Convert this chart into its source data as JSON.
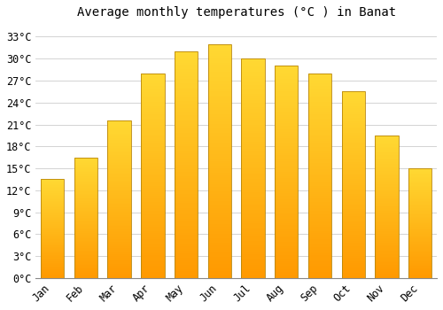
{
  "title": "Average monthly temperatures (°C ) in Banat",
  "months": [
    "Jan",
    "Feb",
    "Mar",
    "Apr",
    "May",
    "Jun",
    "Jul",
    "Aug",
    "Sep",
    "Oct",
    "Nov",
    "Dec"
  ],
  "values": [
    13.5,
    16.5,
    21.5,
    28.0,
    31.0,
    32.0,
    30.0,
    29.0,
    28.0,
    25.5,
    19.5,
    15.0
  ],
  "bar_color_main": "#FFA500",
  "bar_color_light": "#FFD060",
  "bar_edge_color": "#B8860B",
  "background_color": "#FFFFFF",
  "plot_bg_color": "#FFFFFF",
  "grid_color": "#CCCCCC",
  "yticks": [
    0,
    3,
    6,
    9,
    12,
    15,
    18,
    21,
    24,
    27,
    30,
    33
  ],
  "ylim": [
    0,
    34.5
  ],
  "title_fontsize": 10,
  "tick_fontsize": 8.5,
  "bar_width": 0.7
}
